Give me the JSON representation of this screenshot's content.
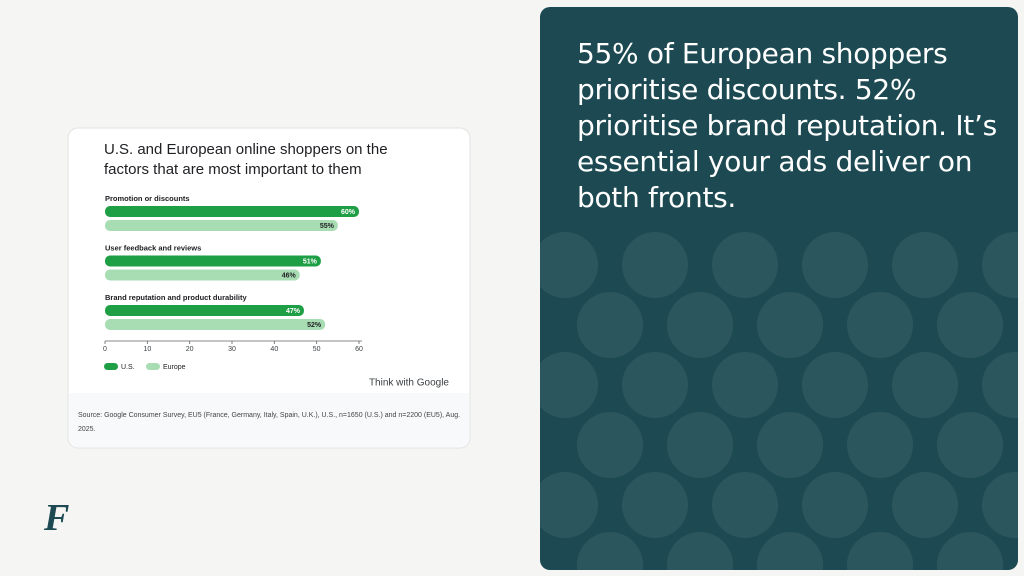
{
  "chart_data": {
    "type": "bar",
    "orientation": "horizontal",
    "title": "U.S. and European online shoppers on the factors that are most important to them",
    "categories": [
      "Promotion or discounts",
      "User feedback and reviews",
      "Brand reputation and product durability"
    ],
    "series": [
      {
        "name": "U.S.",
        "color": "#1e9e45",
        "values": [
          60,
          51,
          47
        ],
        "value_labels": [
          "60%",
          "51%",
          "47%"
        ]
      },
      {
        "name": "Europe",
        "color": "#a8ddb3",
        "values": [
          55,
          46,
          52
        ],
        "value_labels": [
          "55%",
          "46%",
          "52%"
        ]
      }
    ],
    "xlim": [
      0,
      60
    ],
    "xticks": [
      0,
      10,
      20,
      30,
      40,
      50,
      60
    ]
  },
  "brand": "Think with Google",
  "source": "Source: Google Consumer Survey, EU5 (France, Germany, Italy, Spain, U.K.), U.S., n=1650 (U.S.) and n=2200 (EU5), Aug. 2025.",
  "headline": "55% of European shoppers prioritise discounts. 52% prioritise brand reputation. It’s essential your ads deliver on both fronts.",
  "logo": "F"
}
